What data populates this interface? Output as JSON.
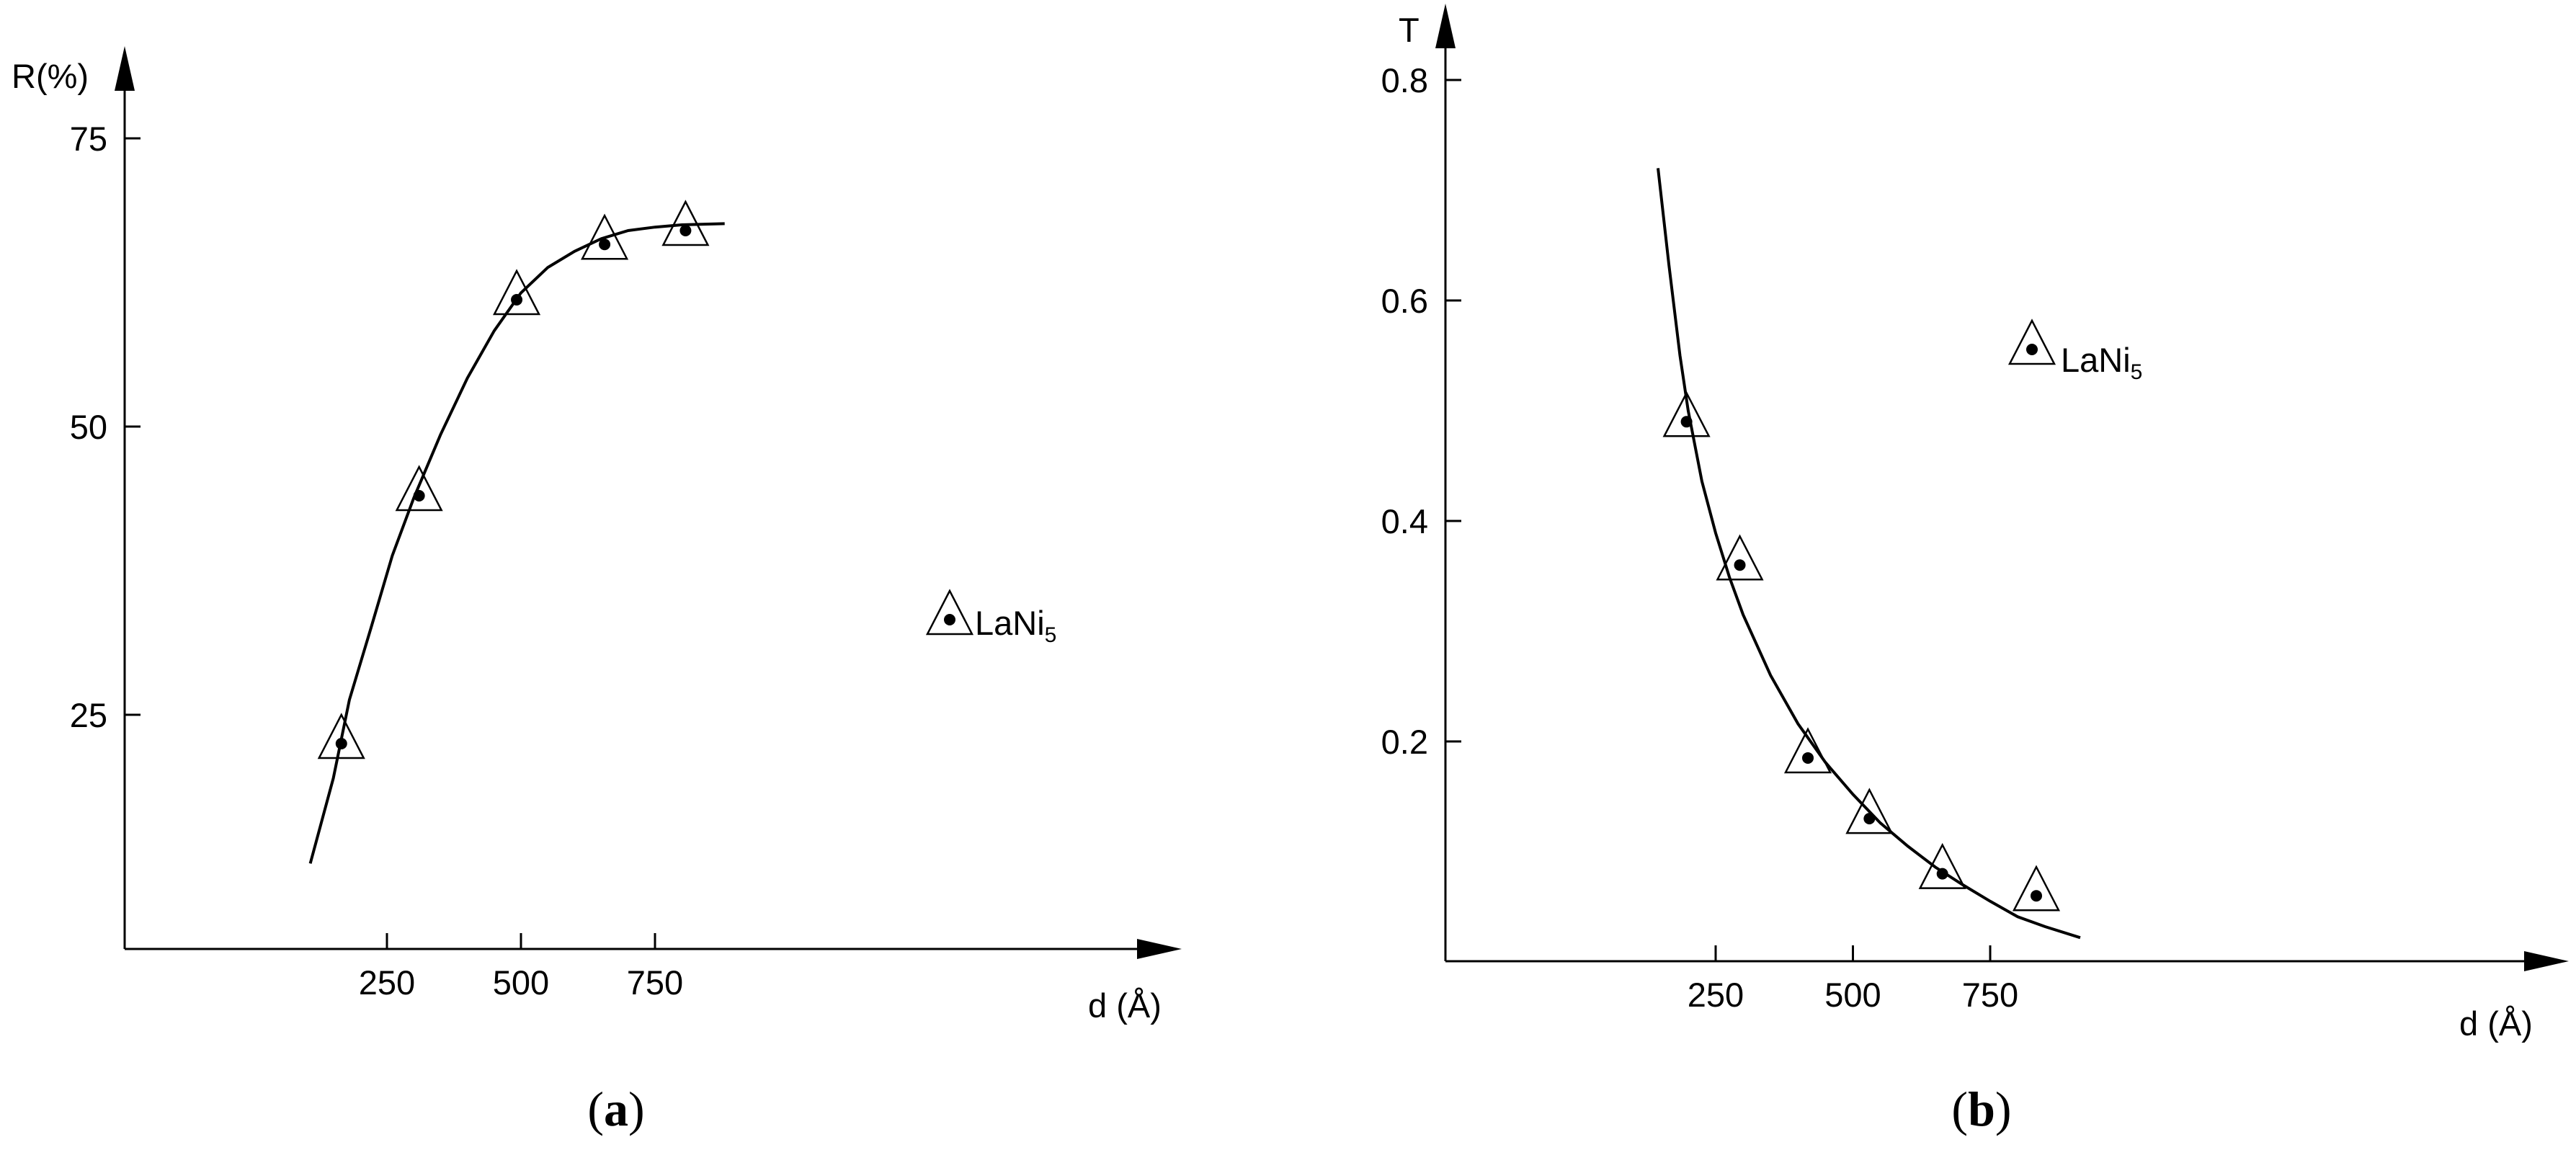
{
  "chart_data": [
    {
      "panel_label": "a",
      "type": "scatter",
      "ylabel": "R(%)",
      "xlabel": "d (Å)",
      "x_ticks": [
        250,
        500,
        750
      ],
      "y_ticks": [
        25,
        50,
        75
      ],
      "xlim": [
        0,
        1000
      ],
      "ylim": [
        0,
        85
      ],
      "points": [
        {
          "x": 165,
          "y": 22.5
        },
        {
          "x": 310,
          "y": 44
        },
        {
          "x": 492,
          "y": 61
        },
        {
          "x": 656,
          "y": 65.8
        },
        {
          "x": 807,
          "y": 67
        }
      ],
      "fit_curve": [
        [
          107,
          12.1
        ],
        [
          150,
          19.5
        ],
        [
          180,
          26.3
        ],
        [
          220,
          32.5
        ],
        [
          260,
          38.8
        ],
        [
          300,
          43.8
        ],
        [
          350,
          49.3
        ],
        [
          400,
          54.2
        ],
        [
          450,
          58.3
        ],
        [
          500,
          61.6
        ],
        [
          550,
          63.8
        ],
        [
          600,
          65.2
        ],
        [
          650,
          66.3
        ],
        [
          700,
          67
        ],
        [
          750,
          67.3
        ],
        [
          800,
          67.5
        ],
        [
          880,
          67.6
        ]
      ],
      "legend": {
        "marker": "triangle-dot",
        "label": "LaNi",
        "subscript": "5",
        "position": "right-middle"
      }
    },
    {
      "panel_label": "b",
      "type": "scatter",
      "ylabel": "T",
      "xlabel": "d (Å)",
      "x_ticks": [
        250,
        500,
        750
      ],
      "y_ticks": [
        0.2,
        0.4,
        0.6,
        0.8
      ],
      "y_tick_labels": [
        "0.2",
        "0.4",
        "0.6",
        "0.8"
      ],
      "xlim": [
        0,
        1000
      ],
      "ylim": [
        0,
        0.88
      ],
      "points": [
        {
          "x": 197,
          "y": 0.49
        },
        {
          "x": 294,
          "y": 0.36
        },
        {
          "x": 418,
          "y": 0.185
        },
        {
          "x": 530,
          "y": 0.13
        },
        {
          "x": 663,
          "y": 0.08
        },
        {
          "x": 834,
          "y": 0.06
        }
      ],
      "fit_curve": [
        [
          145,
          0.72
        ],
        [
          165,
          0.632
        ],
        [
          185,
          0.55
        ],
        [
          200,
          0.5
        ],
        [
          225,
          0.436
        ],
        [
          250,
          0.389
        ],
        [
          275,
          0.349
        ],
        [
          300,
          0.315
        ],
        [
          350,
          0.26
        ],
        [
          400,
          0.216
        ],
        [
          450,
          0.181
        ],
        [
          500,
          0.152
        ],
        [
          550,
          0.126
        ],
        [
          600,
          0.105
        ],
        [
          650,
          0.086
        ],
        [
          700,
          0.07
        ],
        [
          750,
          0.055
        ],
        [
          800,
          0.041
        ],
        [
          850,
          0.032
        ],
        [
          914,
          0.022
        ]
      ],
      "legend": {
        "marker": "triangle-dot",
        "label": "LaNi",
        "subscript": "5",
        "position": "upper-middle"
      }
    }
  ]
}
